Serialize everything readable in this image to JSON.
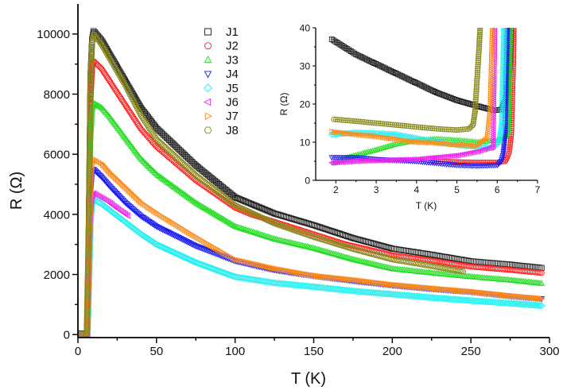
{
  "chart_data": [
    {
      "type": "scatter",
      "xlabel": "T (K)",
      "ylabel": "R (Ω)",
      "xlim": [
        0,
        300
      ],
      "ylim": [
        -100,
        11000
      ],
      "xticks": [
        0,
        50,
        100,
        150,
        200,
        250,
        300
      ],
      "yticks": [
        0,
        2000,
        4000,
        6000,
        8000,
        10000
      ],
      "legend_position": "top-center",
      "series": [
        {
          "name": "J1",
          "marker": "square",
          "color": "#222222",
          "x": [
            2,
            5,
            6,
            7,
            8,
            9,
            10,
            15,
            20,
            30,
            40,
            50,
            75,
            100,
            125,
            150,
            175,
            200,
            225,
            250,
            275,
            295
          ],
          "y": [
            37,
            22,
            18,
            4000,
            8600,
            9800,
            10100,
            9800,
            9350,
            8450,
            7550,
            6870,
            5630,
            4570,
            4030,
            3640,
            3210,
            2860,
            2660,
            2440,
            2330,
            2220
          ]
        },
        {
          "name": "J2",
          "marker": "circle",
          "color": "#ff2020",
          "x": [
            2,
            5,
            6,
            7,
            8,
            9,
            10,
            15,
            20,
            30,
            40,
            50,
            75,
            100,
            110,
            170,
            200,
            225,
            250,
            275,
            295
          ],
          "y": [
            5,
            5,
            5,
            3600,
            7700,
            8850,
            9100,
            8850,
            8450,
            7650,
            6850,
            6250,
            5130,
            4220,
            4000,
            3010,
            2640,
            2460,
            2260,
            2150,
            2050
          ]
        },
        {
          "name": "J3",
          "marker": "triangle-up",
          "color": "#22dd22",
          "x": [
            2,
            5,
            6,
            7,
            8,
            9,
            10,
            15,
            20,
            30,
            40,
            50,
            75,
            100,
            125,
            150,
            175,
            200,
            225,
            250,
            275,
            295
          ],
          "y": [
            5,
            10,
            10,
            3100,
            6500,
            7450,
            7700,
            7550,
            7250,
            6550,
            5850,
            5330,
            4380,
            3600,
            3180,
            2870,
            2500,
            2190,
            2050,
            1925,
            1810,
            1700
          ]
        },
        {
          "name": "J4",
          "marker": "triangle-down",
          "color": "#1a1aee",
          "x": [
            2,
            5,
            6,
            7,
            8,
            9,
            10,
            15,
            20,
            30,
            40,
            50,
            75,
            100,
            125,
            150,
            175,
            200,
            225,
            250,
            275,
            295
          ],
          "y": [
            6,
            4,
            4,
            2200,
            4700,
            5350,
            5500,
            5250,
            4950,
            4400,
            3950,
            3600,
            2950,
            2450,
            2150,
            1950,
            1790,
            1640,
            1520,
            1420,
            1280,
            1190
          ]
        },
        {
          "name": "J5",
          "marker": "diamond",
          "color": "#22eeee",
          "x": [
            2,
            5,
            6,
            7,
            8,
            9,
            10,
            15,
            20,
            30,
            40,
            50,
            75,
            100,
            125,
            150,
            175,
            200,
            225,
            250,
            275,
            295
          ],
          "y": [
            12,
            9,
            9,
            1800,
            3800,
            4380,
            4500,
            4350,
            4150,
            3750,
            3350,
            3000,
            2400,
            1920,
            1720,
            1590,
            1450,
            1340,
            1230,
            1130,
            1040,
            960
          ]
        },
        {
          "name": "J6",
          "marker": "triangle-left",
          "color": "#ee22ee",
          "x": [
            2,
            5,
            6,
            7,
            8,
            9,
            10,
            15,
            20,
            25,
            32
          ],
          "y": [
            5,
            7,
            9,
            1900,
            4000,
            4580,
            4700,
            4550,
            4400,
            4200,
            3950
          ]
        },
        {
          "name": "J7",
          "marker": "triangle-right",
          "color": "#ff8c1a",
          "x": [
            2,
            5,
            6,
            7,
            8,
            9,
            10,
            15,
            20,
            30,
            40,
            50,
            75,
            100,
            125,
            150,
            175,
            200,
            225,
            250,
            275,
            295
          ],
          "y": [
            13,
            9,
            45,
            2300,
            5000,
            5700,
            5850,
            5700,
            5400,
            4900,
            4400,
            4050,
            3250,
            2500,
            2200,
            1960,
            1820,
            1660,
            1540,
            1430,
            1290,
            1190
          ]
        },
        {
          "name": "J8",
          "marker": "hexagon",
          "color": "#8a8a1e",
          "x": [
            2,
            5,
            5.6,
            7,
            8,
            9,
            10,
            15,
            20,
            30,
            40,
            50,
            75,
            100,
            125,
            150,
            175,
            200,
            225,
            245
          ],
          "y": [
            16,
            13,
            45,
            4000,
            8500,
            9700,
            10000,
            9650,
            9200,
            8300,
            7300,
            6500,
            5300,
            4300,
            3700,
            3250,
            2850,
            2500,
            2280,
            2100
          ]
        }
      ]
    },
    {
      "type": "scatter",
      "xlabel": "T (K)",
      "ylabel": "R (Ω)",
      "xlim": [
        1.5,
        7
      ],
      "ylim": [
        0,
        40
      ],
      "xticks": [
        2,
        3,
        4,
        5,
        6,
        7
      ],
      "yticks": [
        0,
        10,
        20,
        30,
        40
      ],
      "series": [
        {
          "name": "J1",
          "marker": "square",
          "color": "#222222",
          "x": [
            1.9,
            2.5,
            3,
            3.5,
            4,
            4.5,
            5,
            5.5,
            5.9,
            6.1,
            6.2,
            6.25,
            6.3,
            6.35,
            6.37
          ],
          "y": [
            37,
            33,
            30.5,
            28,
            25.5,
            23,
            21,
            19.5,
            18.4,
            18.5,
            21,
            24,
            28,
            36,
            45
          ]
        },
        {
          "name": "J2",
          "marker": "circle",
          "color": "#ff2020",
          "x": [
            4.4,
            5,
            5.5,
            6,
            6.2,
            6.25,
            6.3,
            6.35,
            6.4,
            6.42
          ],
          "y": [
            5,
            4.8,
            4.7,
            4.7,
            5,
            6,
            7.5,
            12,
            31,
            45
          ]
        },
        {
          "name": "J3",
          "marker": "triangle-up",
          "color": "#22dd22",
          "x": [
            1.95,
            2.3,
            3,
            3.5,
            4,
            4.5,
            5,
            5.5,
            6,
            6.2,
            6.28,
            6.3,
            6.33
          ],
          "y": [
            4.5,
            6,
            8,
            9.5,
            10.5,
            10.8,
            10.5,
            10,
            10.5,
            11.5,
            13,
            18,
            45
          ]
        },
        {
          "name": "J4",
          "marker": "triangle-down",
          "color": "#1a1aee",
          "x": [
            1.9,
            2.5,
            3,
            4,
            4.5,
            5,
            5.5,
            6,
            6.1,
            6.15,
            6.2,
            6.25,
            6.27
          ],
          "y": [
            6,
            6,
            5.5,
            5,
            4.5,
            4,
            3.8,
            4,
            5,
            7,
            12,
            39,
            45
          ]
        },
        {
          "name": "J5",
          "marker": "diamond",
          "color": "#22eeee",
          "x": [
            1.9,
            2.5,
            3,
            3.5,
            4,
            4.5,
            5,
            5.5,
            5.9,
            6.05,
            6.12,
            6.18
          ],
          "y": [
            12,
            12.5,
            12.3,
            12,
            11,
            10,
            9.3,
            8.8,
            8.5,
            10,
            15,
            45
          ]
        },
        {
          "name": "J6",
          "marker": "triangle-left",
          "color": "#ee22ee",
          "x": [
            1.9,
            2.5,
            3,
            4,
            4.5,
            5,
            5.5,
            5.9,
            5.95
          ],
          "y": [
            4.6,
            5,
            5.2,
            5.5,
            6,
            6.5,
            7.5,
            8.8,
            45
          ]
        },
        {
          "name": "J7",
          "marker": "triangle-right",
          "color": "#ff8c1a",
          "x": [
            1.9,
            2.5,
            3,
            4,
            4.5,
            5,
            5.5,
            5.75,
            5.82,
            5.87,
            5.9
          ],
          "y": [
            12.8,
            12,
            11.5,
            10,
            9.8,
            9.3,
            9,
            11,
            18,
            37,
            45
          ]
        },
        {
          "name": "J8",
          "marker": "hexagon",
          "color": "#8a8a1e",
          "x": [
            1.95,
            2.5,
            3,
            3.5,
            4,
            4.5,
            5,
            5.3,
            5.4,
            5.45,
            5.55,
            5.6
          ],
          "y": [
            16,
            15.5,
            15,
            14.5,
            14,
            13.5,
            13.2,
            13.5,
            14.5,
            18,
            34.7,
            45
          ]
        }
      ]
    }
  ]
}
